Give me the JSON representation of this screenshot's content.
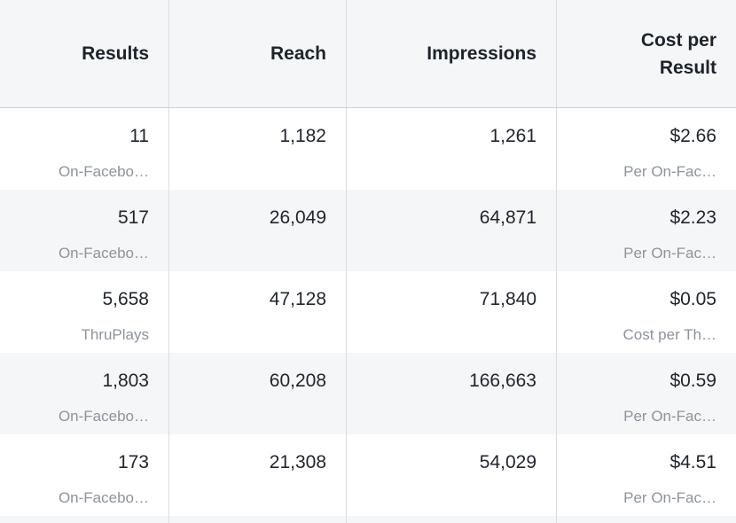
{
  "header": {
    "results": "Results",
    "reach": "Reach",
    "impressions": "Impressions",
    "cost_per_result": "Cost per Result"
  },
  "rows": [
    {
      "results": "11",
      "results_type": "On-Facebo…",
      "reach": "1,182",
      "impressions": "1,261",
      "cost_per_result": "$2.66",
      "cost_type": "Per On-Fac…"
    },
    {
      "results": "517",
      "results_type": "On-Facebo…",
      "reach": "26,049",
      "impressions": "64,871",
      "cost_per_result": "$2.23",
      "cost_type": "Per On-Fac…"
    },
    {
      "results": "5,658",
      "results_type": "ThruPlays",
      "reach": "47,128",
      "impressions": "71,840",
      "cost_per_result": "$0.05",
      "cost_type": "Cost per Th…"
    },
    {
      "results": "1,803",
      "results_type": "On-Facebo…",
      "reach": "60,208",
      "impressions": "166,663",
      "cost_per_result": "$0.59",
      "cost_type": "Per On-Fac…"
    },
    {
      "results": "173",
      "results_type": "On-Facebo…",
      "reach": "21,308",
      "impressions": "54,029",
      "cost_per_result": "$4.51",
      "cost_type": "Per On-Fac…"
    }
  ],
  "colors": {
    "header_bg": "#f5f6f7",
    "row_alt_bg": "#f5f6f7",
    "divider": "#d9dce0",
    "text_primary": "#20262e",
    "text_secondary": "#8d949d"
  }
}
